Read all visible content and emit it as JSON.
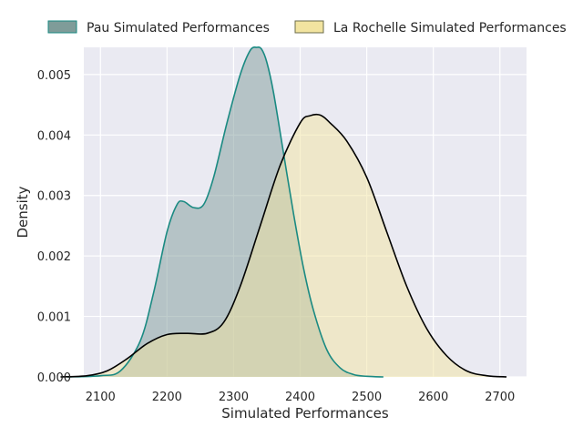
{
  "chart_data": {
    "type": "area",
    "xlabel": "Simulated Performances",
    "ylabel": "Density",
    "xlim": [
      2075,
      2740
    ],
    "ylim": [
      0,
      0.00545
    ],
    "xticks": [
      2100,
      2200,
      2300,
      2400,
      2500,
      2600,
      2700
    ],
    "yticks": [
      0.0,
      0.001,
      0.002,
      0.003,
      0.004,
      0.005
    ],
    "ytick_labels": [
      "0.000",
      "0.001",
      "0.002",
      "0.003",
      "0.004",
      "0.005"
    ],
    "grid": true,
    "legend_placement": "top",
    "colors": {
      "background": "#eaeaf2",
      "grid": "#ffffff",
      "pau_fill": "#7f9c99",
      "pau_line": "#1a8a82",
      "lr_fill": "#f2e4a0",
      "lr_line": "#000000"
    },
    "series": [
      {
        "name": "Pau Simulated Performances",
        "x": [
          2050,
          2100,
          2130,
          2160,
          2180,
          2200,
          2215,
          2225,
          2240,
          2255,
          2270,
          2290,
          2310,
          2325,
          2335,
          2342,
          2350,
          2360,
          2375,
          2390,
          2405,
          2420,
          2440,
          2460,
          2480,
          2500,
          2525
        ],
        "y": [
          0.0,
          2e-05,
          0.0001,
          0.0006,
          0.0014,
          0.0024,
          0.00285,
          0.0029,
          0.0028,
          0.00285,
          0.0033,
          0.0042,
          0.005,
          0.0054,
          0.00545,
          0.00542,
          0.0052,
          0.0047,
          0.0037,
          0.0027,
          0.0018,
          0.0011,
          0.00045,
          0.00015,
          4e-05,
          1e-05,
          0.0
        ]
      },
      {
        "name": "La Rochelle Simulated Performances",
        "x": [
          2040,
          2080,
          2110,
          2140,
          2170,
          2200,
          2230,
          2260,
          2285,
          2310,
          2340,
          2370,
          2400,
          2415,
          2430,
          2445,
          2470,
          2500,
          2530,
          2560,
          2590,
          2620,
          2650,
          2680,
          2710
        ],
        "y": [
          0.0,
          2e-05,
          0.0001,
          0.0003,
          0.00055,
          0.0007,
          0.00072,
          0.00072,
          0.0009,
          0.0015,
          0.0025,
          0.0035,
          0.0042,
          0.00432,
          0.00433,
          0.0042,
          0.0039,
          0.0033,
          0.0024,
          0.0015,
          0.0008,
          0.00035,
          0.0001,
          2e-05,
          0.0
        ]
      }
    ]
  }
}
